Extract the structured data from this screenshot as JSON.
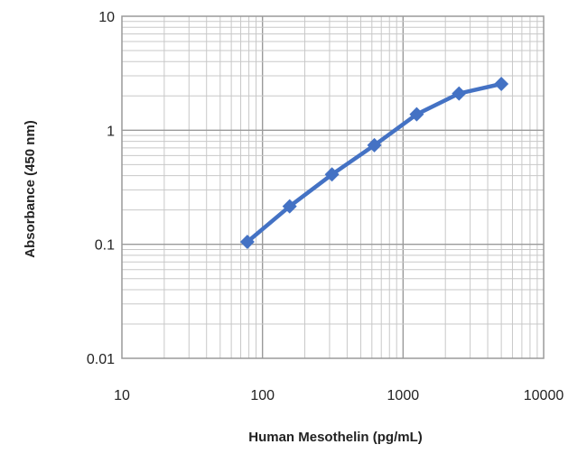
{
  "chart_data": {
    "type": "line",
    "title": "",
    "xlabel": "Human Mesothelin (pg/mL)",
    "ylabel": "Absorbance (450 nm)",
    "x_scale": "log",
    "y_scale": "log",
    "xlim": [
      10,
      10000
    ],
    "ylim": [
      0.01,
      10
    ],
    "x_ticks": [
      "10",
      "100",
      "1000",
      "10000"
    ],
    "y_ticks": [
      "0.01",
      "0.1",
      "1",
      "10"
    ],
    "grid": true,
    "legend": "none",
    "series": [
      {
        "x": [
          78,
          156,
          312,
          625,
          1250,
          2500,
          5000
        ],
        "y": [
          0.105,
          0.215,
          0.41,
          0.74,
          1.38,
          2.1,
          2.55
        ],
        "color": "#4472C4",
        "marker": "diamond"
      }
    ]
  }
}
